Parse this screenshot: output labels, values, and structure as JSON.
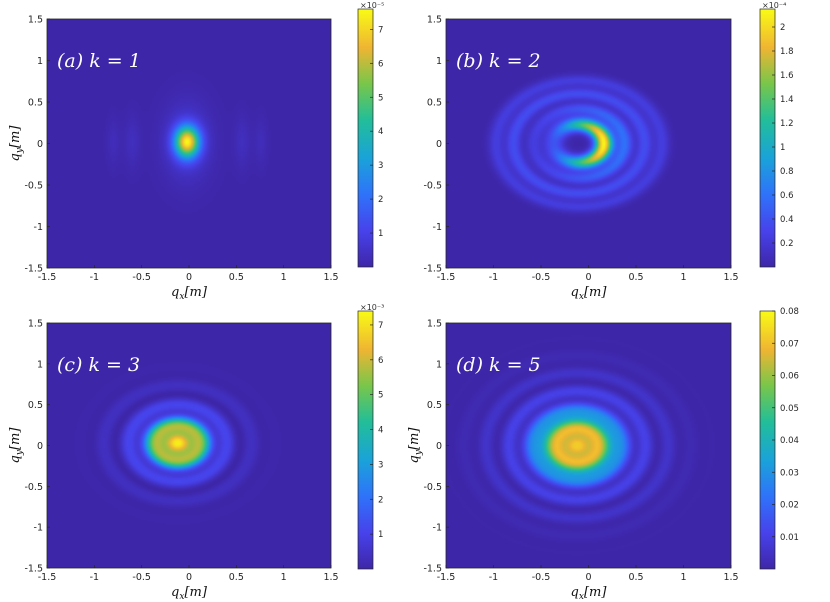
{
  "chart_data": [
    {
      "type": "heatmap",
      "title": "(a) k = 1",
      "xlabel": "q_x[m]",
      "ylabel": "q_y[m]",
      "xlim": [
        -1.5,
        1.5
      ],
      "ylim": [
        -1.5,
        1.5
      ],
      "x_ticks": [
        "-1.5",
        "-1",
        "-0.5",
        "0",
        "0.5",
        "1",
        "1.5"
      ],
      "y_ticks": [
        "1.5",
        "1",
        "0.5",
        "0",
        "-0.5",
        "-1",
        "-1.5"
      ],
      "colorbar": {
        "multiplier": "×10⁻⁵",
        "range": [
          0,
          7.6
        ],
        "ticks": [
          "1",
          "2",
          "3",
          "4",
          "5",
          "6",
          "7"
        ]
      },
      "pattern": {
        "center": [
          -0.02,
          0.02
        ],
        "peak": 7.5,
        "description": "single elliptical lobe with faint side lobes at q_x ≈ ±0.6"
      }
    },
    {
      "type": "heatmap",
      "title": "(b) k = 2",
      "xlabel": "q_x[m]",
      "ylabel": "",
      "xlim": [
        -1.5,
        1.5
      ],
      "ylim": [
        -1.5,
        1.5
      ],
      "x_ticks": [
        "-1.5",
        "-1",
        "-0.5",
        "0",
        "0.5",
        "1",
        "1.5"
      ],
      "y_ticks": [
        "1.5",
        "1",
        "0.5",
        "0",
        "-0.5",
        "-1",
        "-1.5"
      ],
      "colorbar": {
        "multiplier": "×10⁻⁴",
        "range": [
          0,
          2.15
        ],
        "ticks": [
          "0.2",
          "0.4",
          "0.6",
          "0.8",
          "1",
          "1.2",
          "1.4",
          "1.6",
          "1.8",
          "2"
        ]
      },
      "pattern": {
        "center": [
          -0.1,
          0.0
        ],
        "peak": 2.1,
        "description": "crescent ring around a dark centre, brightest at q_x ≈ 0.1, with outer fringes"
      }
    },
    {
      "type": "heatmap",
      "title": "(c) k = 3",
      "xlabel": "q_x[m]",
      "ylabel": "q_y[m]",
      "xlim": [
        -1.5,
        1.5
      ],
      "ylim": [
        -1.5,
        1.5
      ],
      "x_ticks": [
        "-1.5",
        "-1",
        "-0.5",
        "0",
        "0.5",
        "1",
        "1.5"
      ],
      "y_ticks": [
        "1.5",
        "1",
        "0.5",
        "0",
        "-0.5",
        "-1",
        "-1.5"
      ],
      "colorbar": {
        "multiplier": "×10⁻³",
        "range": [
          0,
          7.4
        ],
        "ticks": [
          "1",
          "2",
          "3",
          "4",
          "5",
          "6",
          "7"
        ]
      },
      "pattern": {
        "center": [
          -0.12,
          0.05
        ],
        "peak": 7.2,
        "description": "bright central spot surrounded by concentric fringes out to radius ≈ 0.85"
      }
    },
    {
      "type": "heatmap",
      "title": "(d) k = 5",
      "xlabel": "q_x[m]",
      "ylabel": "q_y[m]",
      "xlim": [
        -1.5,
        1.5
      ],
      "ylim": [
        -1.5,
        1.5
      ],
      "x_ticks": [
        "-1.5",
        "-1",
        "-0.5",
        "0",
        "0.5",
        "1",
        "1.5"
      ],
      "y_ticks": [
        "1.5",
        "1",
        "0.5",
        "0",
        "-0.5",
        "-1",
        "-1.5"
      ],
      "colorbar": {
        "multiplier": "",
        "range": [
          0,
          0.08
        ],
        "ticks": [
          "0.01",
          "0.02",
          "0.03",
          "0.04",
          "0.05",
          "0.06",
          "0.07",
          "0.08"
        ]
      },
      "pattern": {
        "center": [
          -0.12,
          0.0
        ],
        "peak": 0.072,
        "description": "broad central spot with wide concentric halo out to radius ≈ 1.0"
      }
    }
  ]
}
